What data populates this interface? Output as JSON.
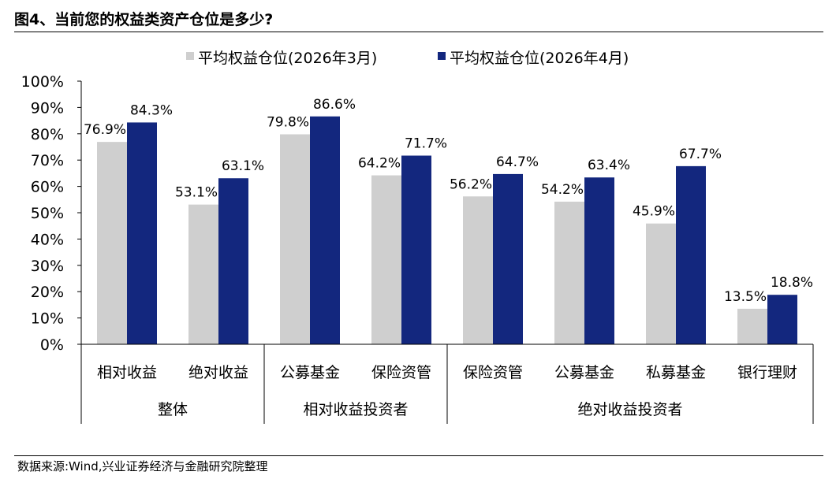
{
  "header": {
    "title": "图4、当前您的权益类资产仓位是多少?"
  },
  "footer": {
    "source": "数据来源:Wind,兴业证券经济与金融研究院整理"
  },
  "colors": {
    "series_1": "#cfcfcf",
    "series_2": "#13277e",
    "axis": "#000000"
  },
  "chart_data": {
    "type": "bar",
    "title": "",
    "xlabel": "",
    "ylabel": "",
    "ylim": [
      0,
      100
    ],
    "yticks": [
      "0%",
      "10%",
      "20%",
      "30%",
      "40%",
      "50%",
      "60%",
      "70%",
      "80%",
      "90%",
      "100%"
    ],
    "categories": [
      "相对收益",
      "绝对收益",
      "公募基金",
      "保险资管",
      "保险资管",
      "公募基金",
      "私募基金",
      "银行理财"
    ],
    "groups": [
      {
        "label": "整体",
        "count": 2
      },
      {
        "label": "相对收益投资者",
        "count": 2
      },
      {
        "label": "绝对收益投资者",
        "count": 4
      }
    ],
    "legend_position": "top",
    "grid": false,
    "series": [
      {
        "name": "平均权益仓位(2026年3月)",
        "values": [
          76.9,
          53.1,
          79.8,
          64.2,
          56.2,
          54.2,
          45.9,
          13.5
        ],
        "labels": [
          "76.9%",
          "53.1%",
          "79.8%",
          "64.2%",
          "56.2%",
          "54.2%",
          "45.9%",
          "13.5%"
        ]
      },
      {
        "name": "平均权益仓位(2026年4月)",
        "values": [
          84.3,
          63.1,
          86.6,
          71.7,
          64.7,
          63.4,
          67.7,
          18.8
        ],
        "labels": [
          "84.3%",
          "63.1%",
          "86.6%",
          "71.7%",
          "64.7%",
          "63.4%",
          "67.7%",
          "18.8%"
        ]
      }
    ]
  }
}
